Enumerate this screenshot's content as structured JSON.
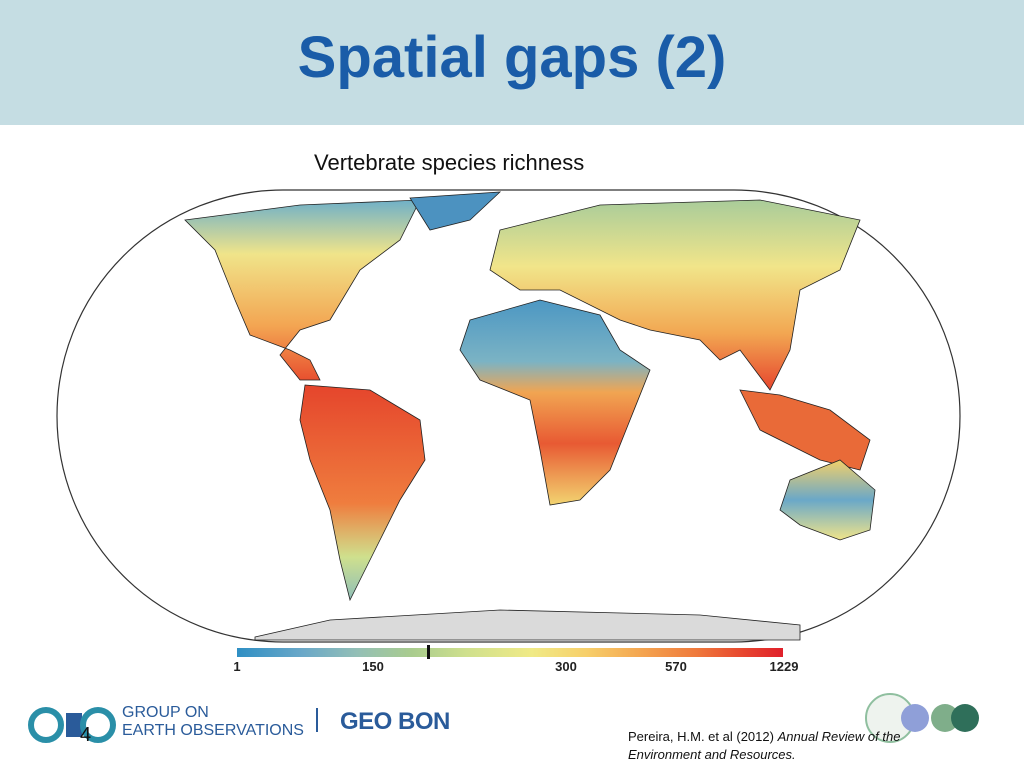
{
  "header": {
    "title": "Spatial gaps (2)"
  },
  "figure": {
    "title": "Vertebrate species richness",
    "legend": {
      "labels": [
        "1",
        "150",
        "300",
        "570",
        "1229"
      ]
    }
  },
  "footer": {
    "geo": {
      "line1": "GROUP ON",
      "line2": "EARTH OBSERVATIONS"
    },
    "geobon": "GEO BON",
    "page_number": "4",
    "citation": {
      "text": "Pereira, H.M. et al (2012)",
      "journal": "Annual Review of the Environment and Resources."
    }
  }
}
